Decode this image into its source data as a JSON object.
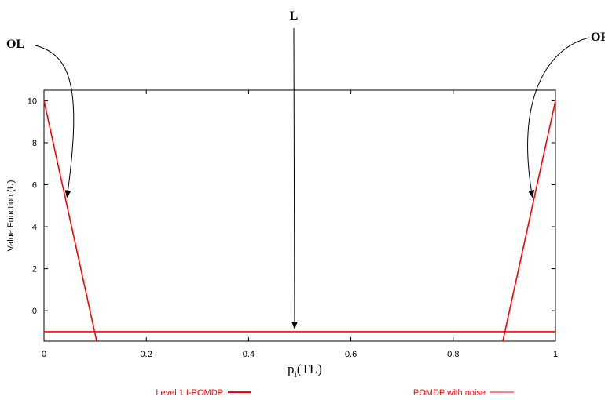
{
  "chart_data": {
    "type": "line",
    "ylabel": "Value Function (U)",
    "xlabel": {
      "main": "p",
      "sub": "i",
      "rest": "(TL)"
    },
    "xlim": [
      0,
      1
    ],
    "ylim": [
      -1.45,
      10.5
    ],
    "x_ticks": [
      0,
      0.2,
      0.4,
      0.6,
      0.8,
      1
    ],
    "x_tick_labels": [
      "0",
      "0.2",
      "0.4",
      "0.6",
      "0.8",
      "1"
    ],
    "y_ticks": [
      0,
      2,
      4,
      6,
      8,
      10
    ],
    "y_tick_labels": [
      "0",
      "2",
      "4",
      "6",
      "8",
      "10"
    ],
    "grid": false,
    "legend_placement": "bottom",
    "series": [
      {
        "name": "Level 1 I-POMDP",
        "color": "#ff0000",
        "segments": [
          [
            [
              0,
              10
            ],
            [
              0.103,
              -1.45
            ]
          ],
          [
            [
              0,
              -1
            ],
            [
              1,
              -1
            ]
          ],
          [
            [
              0.897,
              -1.45
            ],
            [
              1,
              10
            ]
          ]
        ]
      },
      {
        "name": "POMDP with noise",
        "color": "#ff0000",
        "segments": []
      }
    ],
    "annotations": [
      {
        "text": "OL",
        "point": [
          0.045,
          5.4
        ]
      },
      {
        "text": "L",
        "point": [
          0.49,
          -0.85
        ]
      },
      {
        "text": "OR",
        "point": [
          0.955,
          5.4
        ]
      }
    ]
  }
}
